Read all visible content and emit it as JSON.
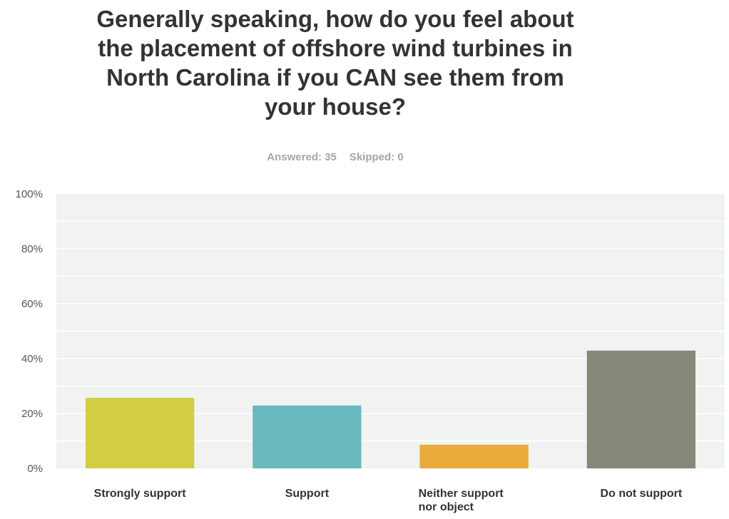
{
  "title": "Generally speaking, how do you feel about the placement of offshore wind turbines in North Carolina if you CAN see them from your house?",
  "title_lines": [
    "Generally speaking, how do you feel about",
    "the placement of offshore wind turbines in",
    "North Carolina if you CAN see them from",
    "your house?"
  ],
  "stats": {
    "answered": "Answered: 35",
    "skipped": "Skipped: 0"
  },
  "chart_data": {
    "type": "bar",
    "categories": [
      "Strongly support",
      "Support",
      "Neither support nor object",
      "Do not support"
    ],
    "category_lines": [
      [
        "Strongly support"
      ],
      [
        "Support"
      ],
      [
        "Neither support",
        "nor object"
      ],
      [
        "Do not support"
      ]
    ],
    "values": [
      25.7,
      22.9,
      8.6,
      42.9
    ],
    "colors": [
      "#d3cd43",
      "#67b9be",
      "#e9ab3a",
      "#87877a"
    ],
    "ylim": [
      0,
      100
    ],
    "yticks": [
      0,
      20,
      40,
      60,
      80,
      100
    ],
    "ytick_labels": [
      "0%",
      "20%",
      "40%",
      "60%",
      "80%",
      "100%"
    ],
    "grid": true,
    "plot_background": "#f1f2f2",
    "grid_color": "#ffffff"
  }
}
